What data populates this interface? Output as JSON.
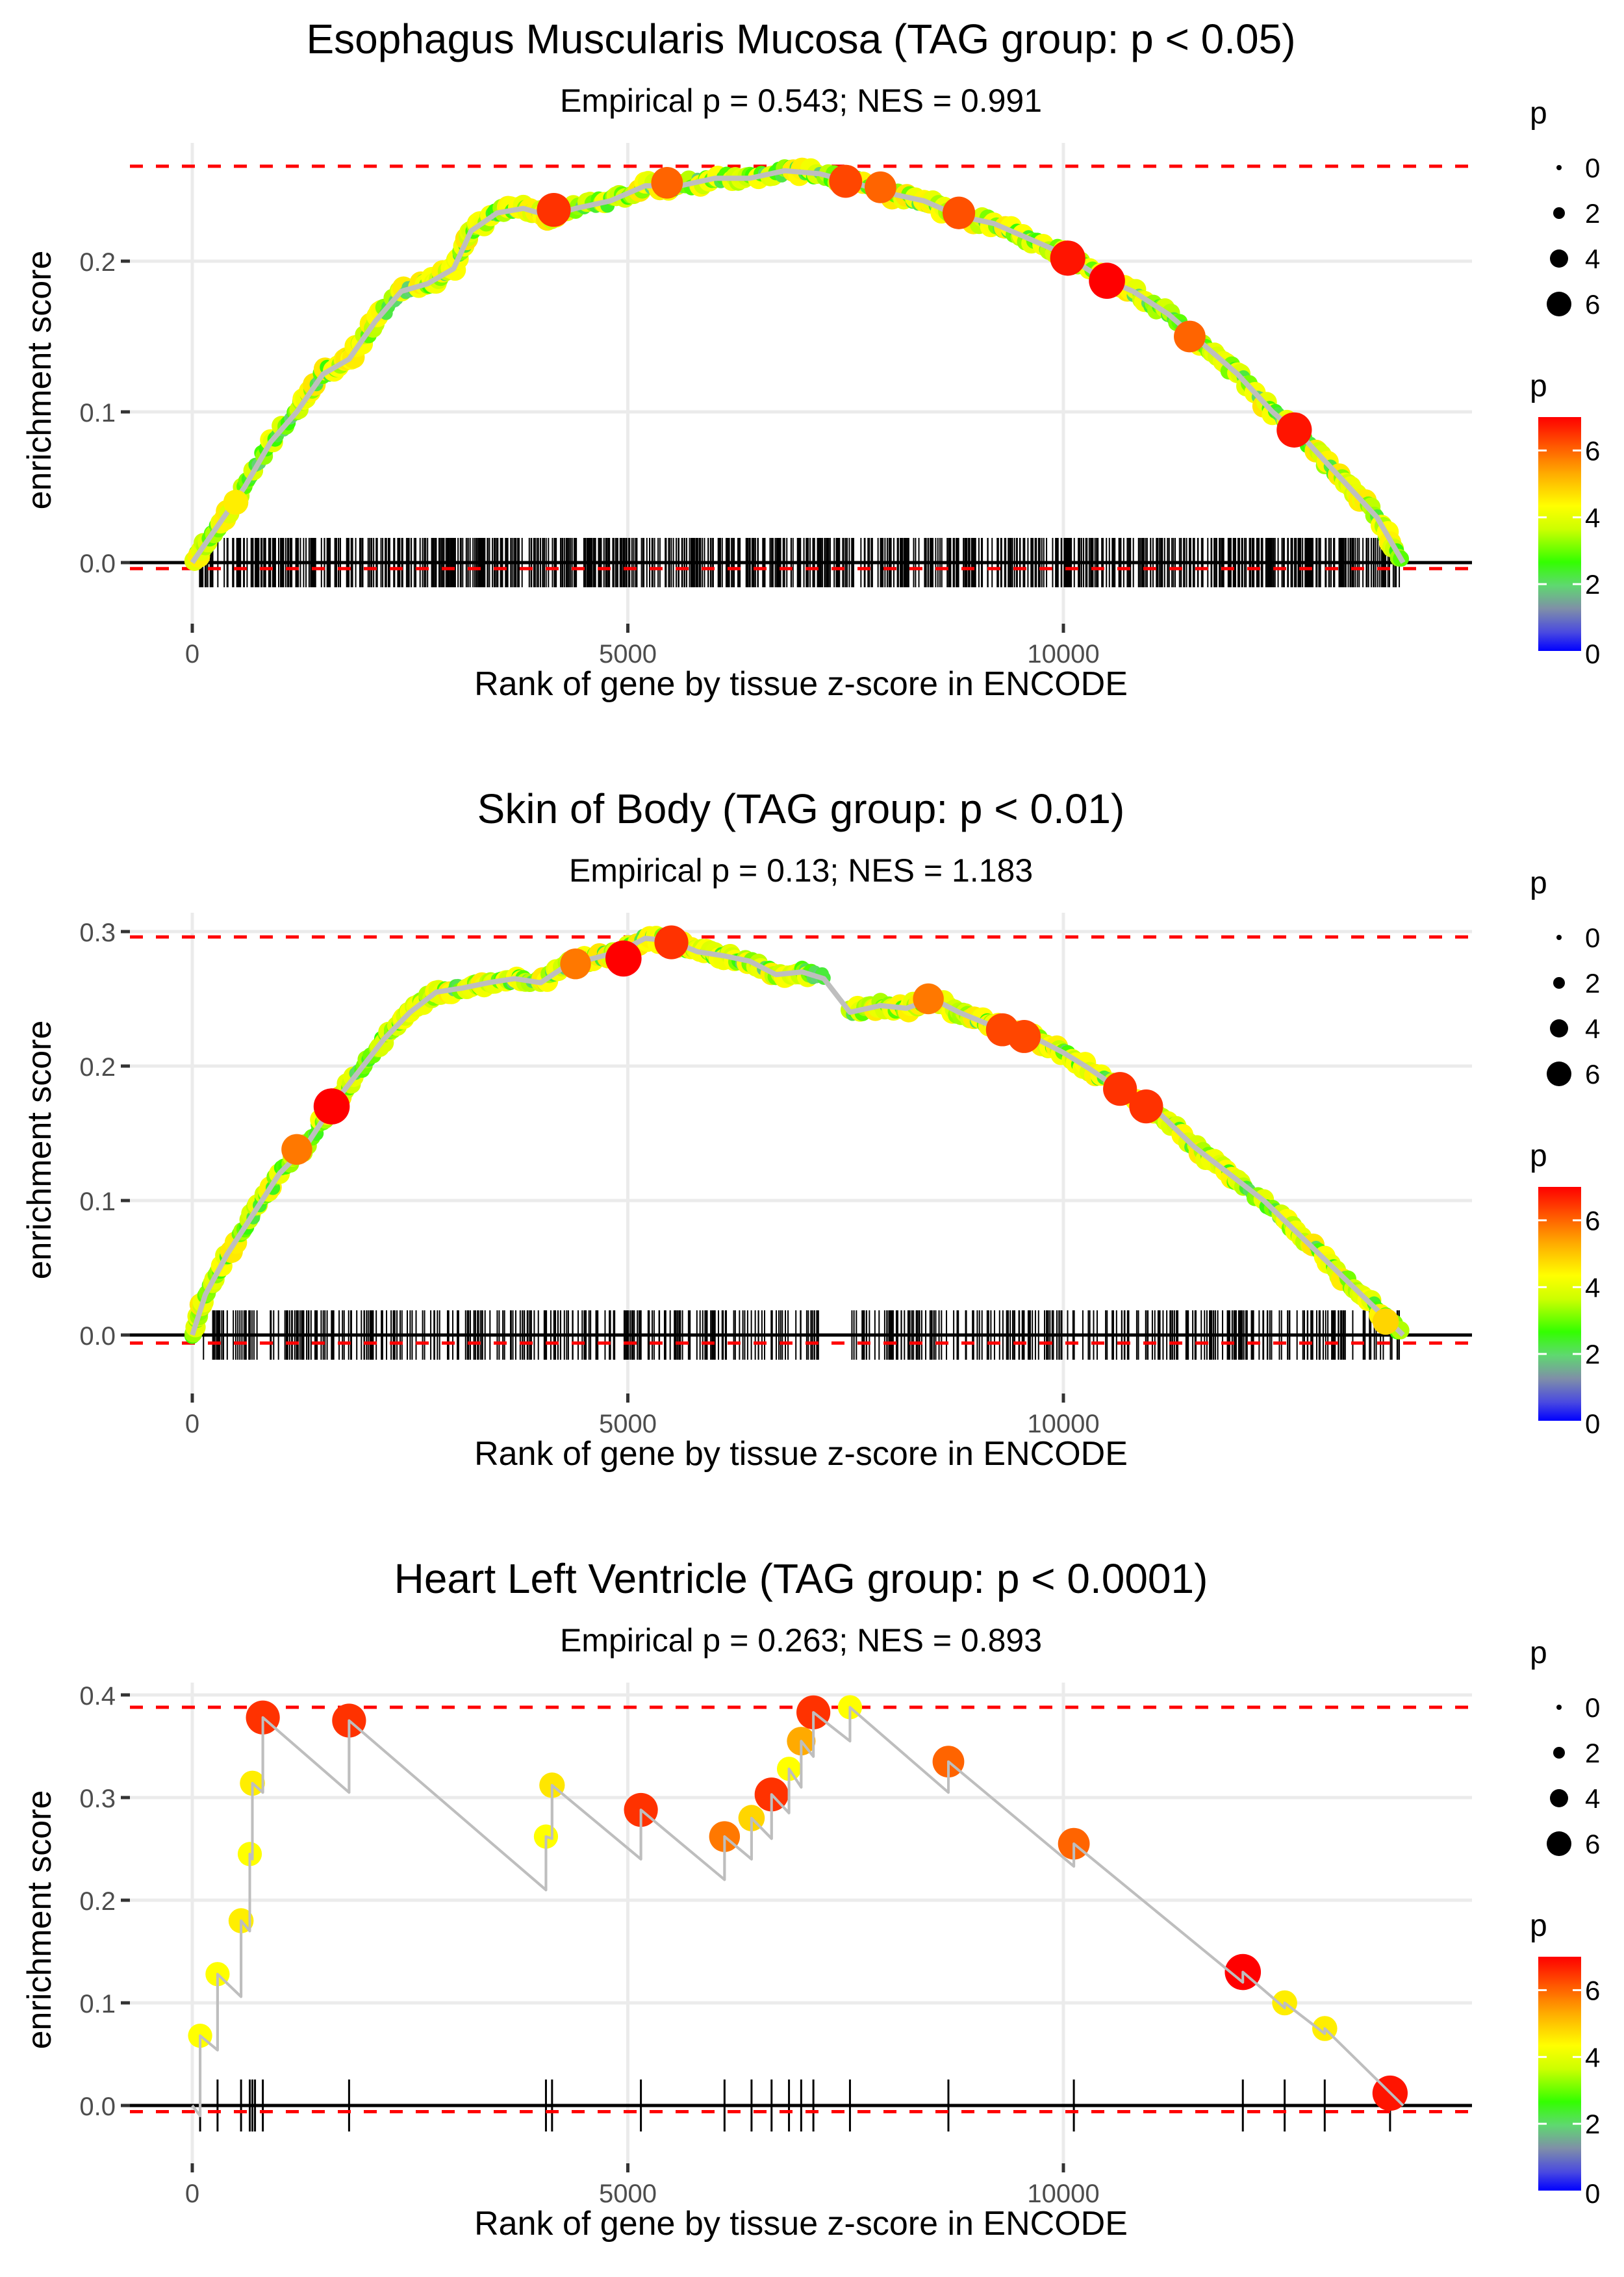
{
  "chart_data": [
    {
      "type": "line",
      "title": "Esophagus Muscularis Mucosa (TAG group: p < 0.05)",
      "subtitle": "Empirical p = 0.543; NES = 0.991",
      "xlabel": "Rank of gene by tissue z-score in ENCODE",
      "ylabel": "enrichment score",
      "xlim": [
        -1200,
        14800
      ],
      "ylim": [
        -0.03,
        0.27
      ],
      "x_ticks": [
        0,
        5000,
        10000
      ],
      "x_tick_labels": [
        "0",
        "5000",
        "10000"
      ],
      "y_ticks": [
        0.0,
        0.1,
        0.2
      ],
      "y_tick_labels": [
        "0.0",
        "0.1",
        "0.2"
      ],
      "max_es_line": 0.263,
      "min_es_line": -0.004,
      "n_genes": 13900,
      "grid": true,
      "rug": "dense",
      "series": [
        {
          "name": "running enrichment score",
          "x": [
            0,
            300,
            600,
            900,
            1200,
            1500,
            1800,
            2100,
            2400,
            2700,
            3000,
            3200,
            3500,
            3800,
            4100,
            4400,
            4800,
            5200,
            5600,
            6000,
            6400,
            6800,
            7200,
            7600,
            8000,
            8400,
            8800,
            9200,
            9600,
            10000,
            10400,
            10800,
            11200,
            11600,
            12000,
            12400,
            12800,
            13200,
            13600,
            13900
          ],
          "y": [
            0.0,
            0.025,
            0.05,
            0.08,
            0.1,
            0.125,
            0.135,
            0.16,
            0.18,
            0.185,
            0.195,
            0.22,
            0.232,
            0.235,
            0.23,
            0.235,
            0.24,
            0.25,
            0.25,
            0.255,
            0.255,
            0.26,
            0.258,
            0.252,
            0.245,
            0.24,
            0.23,
            0.225,
            0.215,
            0.205,
            0.19,
            0.18,
            0.165,
            0.145,
            0.125,
            0.1,
            0.08,
            0.055,
            0.03,
            0.0
          ]
        }
      ],
      "highlight_points": [
        {
          "x": 500,
          "y": 0.04,
          "p": 4.5
        },
        {
          "x": 4150,
          "y": 0.234,
          "p": 6.5
        },
        {
          "x": 5450,
          "y": 0.252,
          "p": 6.0
        },
        {
          "x": 7500,
          "y": 0.253,
          "p": 6.3
        },
        {
          "x": 7900,
          "y": 0.249,
          "p": 6.0
        },
        {
          "x": 8800,
          "y": 0.232,
          "p": 6.2
        },
        {
          "x": 10050,
          "y": 0.202,
          "p": 6.8
        },
        {
          "x": 10500,
          "y": 0.187,
          "p": 7.0
        },
        {
          "x": 11450,
          "y": 0.15,
          "p": 6.0
        },
        {
          "x": 12650,
          "y": 0.088,
          "p": 6.8
        }
      ]
    },
    {
      "type": "line",
      "title": "Skin of Body (TAG group: p < 0.01)",
      "subtitle": "Empirical p = 0.13; NES = 1.183",
      "xlabel": "Rank of gene by tissue z-score in ENCODE",
      "ylabel": "enrichment score",
      "xlim": [
        -1200,
        14800
      ],
      "ylim": [
        -0.02,
        0.32
      ],
      "x_ticks": [
        0,
        5000,
        10000
      ],
      "x_tick_labels": [
        "0",
        "5000",
        "10000"
      ],
      "y_ticks": [
        0.0,
        0.1,
        0.2,
        0.3
      ],
      "y_tick_labels": [
        "0.0",
        "0.1",
        "0.2",
        "0.3"
      ],
      "max_es_line": 0.296,
      "min_es_line": -0.006,
      "n_genes": 13900,
      "grid": true,
      "rug": "dense with gap near 7200-7500",
      "series": [
        {
          "name": "running enrichment score",
          "x": [
            0,
            150,
            400,
            700,
            1000,
            1300,
            1600,
            1900,
            2200,
            2500,
            2800,
            3100,
            3400,
            3700,
            4000,
            4300,
            4600,
            4900,
            5200,
            5500,
            5800,
            6100,
            6400,
            6700,
            7000,
            7250,
            7550,
            7900,
            8200,
            8500,
            8800,
            9100,
            9400,
            9700,
            10000,
            10300,
            10700,
            11100,
            11500,
            11900,
            12300,
            12700,
            13100,
            13500,
            13900
          ],
          "y": [
            0.0,
            0.03,
            0.06,
            0.09,
            0.12,
            0.14,
            0.17,
            0.195,
            0.22,
            0.24,
            0.255,
            0.258,
            0.262,
            0.265,
            0.262,
            0.275,
            0.28,
            0.285,
            0.295,
            0.293,
            0.285,
            0.282,
            0.278,
            0.268,
            0.27,
            0.265,
            0.24,
            0.245,
            0.243,
            0.25,
            0.24,
            0.232,
            0.225,
            0.22,
            0.21,
            0.198,
            0.18,
            0.165,
            0.14,
            0.12,
            0.1,
            0.075,
            0.05,
            0.025,
            0.0
          ]
        }
      ],
      "highlight_points": [
        {
          "x": 1200,
          "y": 0.138,
          "p": 5.8
        },
        {
          "x": 1600,
          "y": 0.17,
          "p": 7.0
        },
        {
          "x": 4400,
          "y": 0.276,
          "p": 5.8
        },
        {
          "x": 4950,
          "y": 0.28,
          "p": 7.0
        },
        {
          "x": 5500,
          "y": 0.292,
          "p": 6.5
        },
        {
          "x": 8450,
          "y": 0.25,
          "p": 5.8
        },
        {
          "x": 9300,
          "y": 0.227,
          "p": 6.3
        },
        {
          "x": 9550,
          "y": 0.222,
          "p": 6.3
        },
        {
          "x": 10650,
          "y": 0.183,
          "p": 6.5
        },
        {
          "x": 10950,
          "y": 0.17,
          "p": 6.5
        },
        {
          "x": 13700,
          "y": 0.01,
          "p": 4.8
        }
      ]
    },
    {
      "type": "line",
      "title": "Heart Left Ventricle (TAG group: p < 0.0001)",
      "subtitle": "Empirical p = 0.263; NES = 0.893",
      "xlabel": "Rank of gene by tissue z-score in ENCODE",
      "ylabel": "enrichment score",
      "xlim": [
        -1200,
        14800
      ],
      "ylim": [
        -0.04,
        0.42
      ],
      "x_ticks": [
        0,
        5000,
        10000
      ],
      "x_tick_labels": [
        "0",
        "5000",
        "10000"
      ],
      "y_ticks": [
        0.0,
        0.1,
        0.2,
        0.3,
        0.4
      ],
      "y_tick_labels": [
        "0.0",
        "0.1",
        "0.2",
        "0.3",
        "0.4"
      ],
      "max_es_line": 0.388,
      "min_es_line": -0.006,
      "n_genes": 13900,
      "grid": true,
      "rug": "sparse",
      "series": [
        {
          "name": "running enrichment score",
          "x": [
            0,
            90,
            90,
            290,
            290,
            560,
            560,
            660,
            660,
            690,
            690,
            810,
            810,
            1800,
            1800,
            4060,
            4060,
            4130,
            4130,
            5150,
            5150,
            6110,
            6110,
            6420,
            6420,
            6650,
            6650,
            6850,
            6850,
            6990,
            6990,
            7130,
            7130,
            7550,
            7550,
            8680,
            8680,
            10120,
            10120,
            12060,
            12060,
            12540,
            12540,
            13000,
            13000,
            13900
          ],
          "y": [
            0.0,
            -0.01,
            0.068,
            0.054,
            0.128,
            0.106,
            0.18,
            0.17,
            0.245,
            0.24,
            0.314,
            0.305,
            0.378,
            0.305,
            0.375,
            0.21,
            0.262,
            0.26,
            0.312,
            0.24,
            0.288,
            0.22,
            0.262,
            0.24,
            0.28,
            0.26,
            0.303,
            0.285,
            0.328,
            0.31,
            0.355,
            0.34,
            0.383,
            0.355,
            0.388,
            0.305,
            0.335,
            0.233,
            0.255,
            0.12,
            0.13,
            0.095,
            0.1,
            0.07,
            0.075,
            0.0
          ]
        }
      ],
      "highlight_points": [
        {
          "x": 90,
          "y": 0.068,
          "p": 4.3
        },
        {
          "x": 290,
          "y": 0.128,
          "p": 4.3
        },
        {
          "x": 560,
          "y": 0.18,
          "p": 4.5
        },
        {
          "x": 660,
          "y": 0.245,
          "p": 4.3
        },
        {
          "x": 690,
          "y": 0.314,
          "p": 4.5
        },
        {
          "x": 810,
          "y": 0.378,
          "p": 6.5
        },
        {
          "x": 1800,
          "y": 0.375,
          "p": 6.5
        },
        {
          "x": 4060,
          "y": 0.262,
          "p": 4.3
        },
        {
          "x": 4130,
          "y": 0.312,
          "p": 4.6
        },
        {
          "x": 5150,
          "y": 0.288,
          "p": 6.5
        },
        {
          "x": 6110,
          "y": 0.262,
          "p": 5.8
        },
        {
          "x": 6420,
          "y": 0.28,
          "p": 4.8
        },
        {
          "x": 6650,
          "y": 0.303,
          "p": 6.5
        },
        {
          "x": 6850,
          "y": 0.328,
          "p": 4.3
        },
        {
          "x": 6990,
          "y": 0.355,
          "p": 5.3
        },
        {
          "x": 7130,
          "y": 0.383,
          "p": 6.5
        },
        {
          "x": 7550,
          "y": 0.388,
          "p": 4.3
        },
        {
          "x": 8680,
          "y": 0.335,
          "p": 6.0
        },
        {
          "x": 10120,
          "y": 0.255,
          "p": 6.0
        },
        {
          "x": 12060,
          "y": 0.13,
          "p": 7.0
        },
        {
          "x": 12540,
          "y": 0.1,
          "p": 4.5
        },
        {
          "x": 13000,
          "y": 0.075,
          "p": 4.5
        },
        {
          "x": 13750,
          "y": 0.012,
          "p": 6.8
        }
      ],
      "rug_x": [
        90,
        290,
        560,
        660,
        690,
        720,
        810,
        1800,
        4060,
        4130,
        5150,
        6110,
        6420,
        6650,
        6850,
        6990,
        7130,
        7550,
        8680,
        10120,
        12060,
        12540,
        13000,
        13750
      ]
    }
  ],
  "legends": {
    "size_title": "p",
    "size_breaks": [
      "0",
      "2",
      "4",
      "6"
    ],
    "color_title": "p",
    "color_breaks": [
      "6",
      "4",
      "2",
      "0"
    ],
    "color_range": [
      0,
      7
    ],
    "color_stops": [
      "#0000ff",
      "#7f7fa0",
      "#7fcf7f",
      "#33ff00",
      "#ccff00",
      "#ffff00",
      "#ffaa00",
      "#ff5500",
      "#ff0000"
    ]
  },
  "colors": {
    "max_line": "#ff0000",
    "curve": "#bebebe",
    "rug": "#000000",
    "grid": "#ebebeb",
    "zero_line": "#000000"
  }
}
